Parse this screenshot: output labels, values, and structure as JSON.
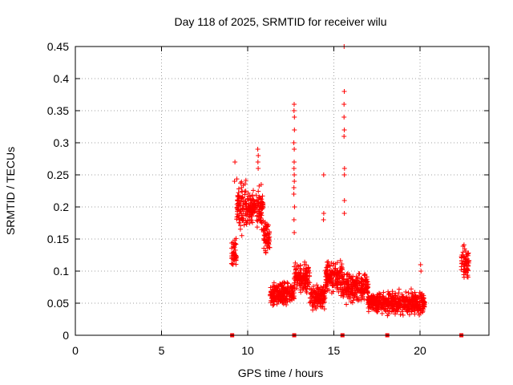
{
  "chart_data": {
    "type": "scatter",
    "title": "Day 118 of 2025, SRMTID for receiver wilu",
    "xlabel": "GPS time / hours",
    "ylabel": "SRMTID / TECUs",
    "xlim": [
      0,
      24
    ],
    "ylim": [
      0,
      0.45
    ],
    "x_ticks": [
      0,
      5,
      10,
      15,
      20
    ],
    "y_ticks": [
      0,
      0.05,
      0.1,
      0.15,
      0.2,
      0.25,
      0.3,
      0.35,
      0.4,
      0.45
    ],
    "x_tick_labels": [
      "0",
      "5",
      "10",
      "15",
      "20"
    ],
    "y_tick_labels": [
      "0",
      "0.05",
      "0.1",
      "0.15",
      "0.2",
      "0.25",
      "0.3",
      "0.35",
      "0.4",
      "0.45"
    ],
    "grid": true,
    "marker": "+",
    "series_color": "#ff0000",
    "baseline_markers_x": [
      9.1,
      12.7,
      15.5,
      18.1,
      22.4
    ],
    "series": [
      {
        "name": "SRMTID",
        "segments": [
          {
            "x_range": [
              9.05,
              9.35
            ],
            "y_center": 0.13,
            "y_spread": 0.03
          },
          {
            "x_range": [
              9.35,
              10.0
            ],
            "y_center": 0.2,
            "y_spread": 0.05
          },
          {
            "x_range": [
              10.0,
              10.9
            ],
            "y_center": 0.2,
            "y_spread": 0.04
          },
          {
            "x_range": [
              10.9,
              11.3
            ],
            "y_center": 0.15,
            "y_spread": 0.04
          },
          {
            "x_range": [
              11.3,
              12.7
            ],
            "y_center": 0.065,
            "y_spread": 0.025
          },
          {
            "x_range": [
              12.7,
              13.6
            ],
            "y_center": 0.09,
            "y_spread": 0.03
          },
          {
            "x_range": [
              13.6,
              14.5
            ],
            "y_center": 0.06,
            "y_spread": 0.025
          },
          {
            "x_range": [
              14.5,
              15.5
            ],
            "y_center": 0.09,
            "y_spread": 0.035
          },
          {
            "x_range": [
              15.5,
              17.0
            ],
            "y_center": 0.075,
            "y_spread": 0.03
          },
          {
            "x_range": [
              17.0,
              18.1
            ],
            "y_center": 0.05,
            "y_spread": 0.02
          },
          {
            "x_range": [
              18.1,
              20.3
            ],
            "y_center": 0.05,
            "y_spread": 0.025
          },
          {
            "x_range": [
              22.4,
              22.85
            ],
            "y_center": 0.115,
            "y_spread": 0.035
          }
        ],
        "spikes": [
          {
            "x": 9.25,
            "y": [
              0.27,
              0.24
            ]
          },
          {
            "x": 10.6,
            "y": [
              0.29,
              0.28,
              0.27,
              0.26
            ]
          },
          {
            "x": 12.7,
            "y": [
              0.36,
              0.35,
              0.34,
              0.32,
              0.3,
              0.29,
              0.27,
              0.26,
              0.25,
              0.24,
              0.23,
              0.22,
              0.2,
              0.18,
              0.16
            ]
          },
          {
            "x": 14.4,
            "y": [
              0.25,
              0.19,
              0.18
            ]
          },
          {
            "x": 15.6,
            "y": [
              0.45,
              0.38,
              0.36,
              0.34,
              0.32,
              0.31,
              0.26,
              0.25,
              0.21,
              0.19
            ]
          },
          {
            "x": 20.05,
            "y": [
              0.11,
              0.1
            ]
          }
        ]
      }
    ]
  }
}
